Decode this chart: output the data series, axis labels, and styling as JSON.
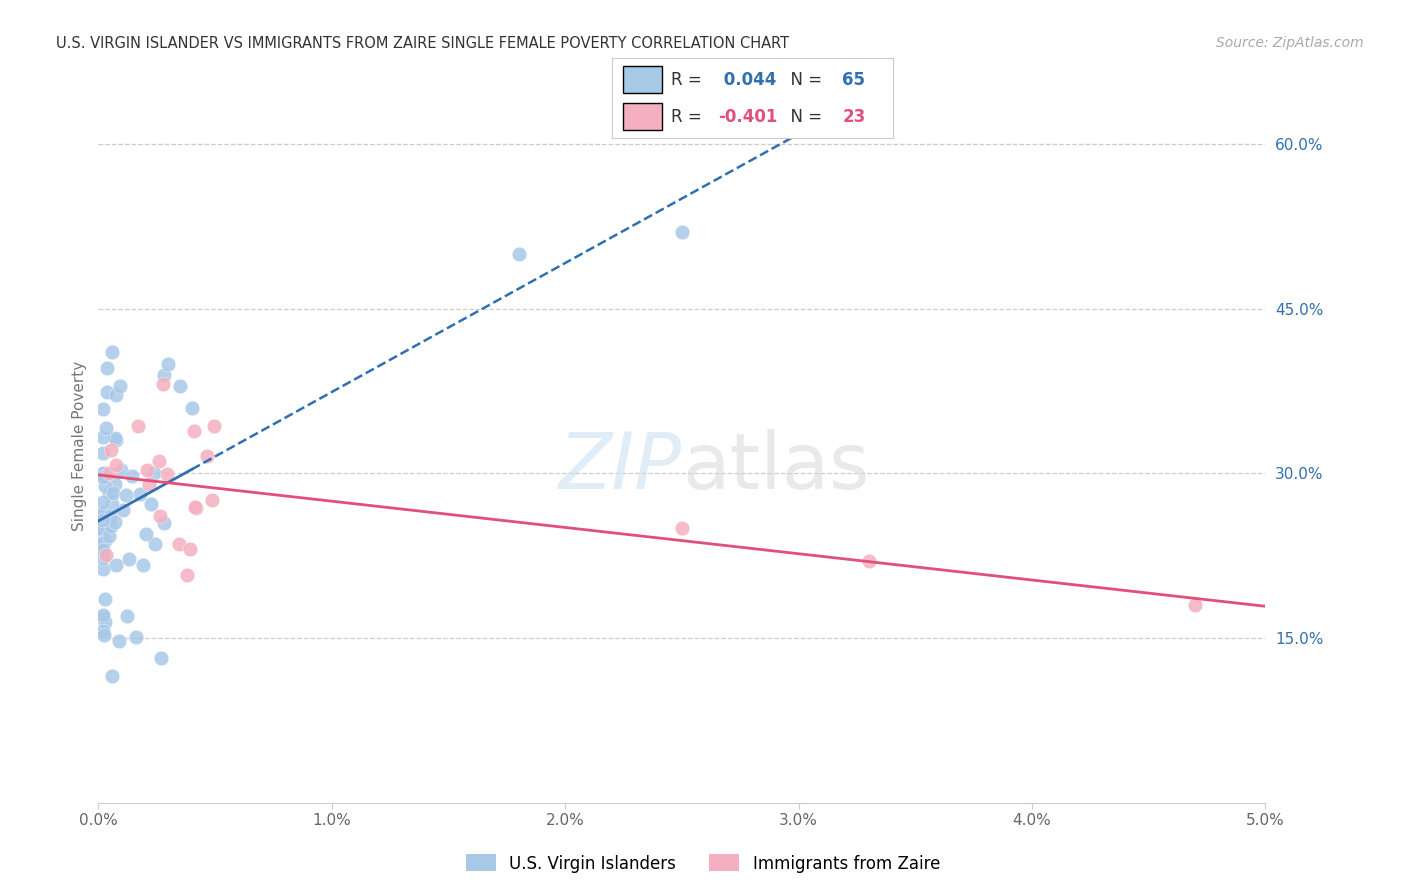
{
  "title": "U.S. VIRGIN ISLANDER VS IMMIGRANTS FROM ZAIRE SINGLE FEMALE POVERTY CORRELATION CHART",
  "source": "Source: ZipAtlas.com",
  "ylabel": "Single Female Poverty",
  "xlim": [
    0.0,
    0.05
  ],
  "ylim": [
    0.0,
    0.65
  ],
  "xticks": [
    0.0,
    0.01,
    0.02,
    0.03,
    0.04,
    0.05
  ],
  "xtick_labels": [
    "0.0%",
    "1.0%",
    "2.0%",
    "3.0%",
    "4.0%",
    "5.0%"
  ],
  "ytick_right_labels": [
    "15.0%",
    "30.0%",
    "45.0%",
    "60.0%"
  ],
  "ytick_right_values": [
    0.15,
    0.3,
    0.45,
    0.6
  ],
  "blue_R": 0.044,
  "blue_N": 65,
  "pink_R": -0.401,
  "pink_N": 23,
  "blue_color": "#a8c8e8",
  "blue_line_color": "#3070b0",
  "pink_color": "#f4b0c0",
  "pink_line_color": "#e0507a",
  "legend_label_blue": "U.S. Virgin Islanders",
  "legend_label_pink": "Immigrants from Zaire",
  "background_color": "#ffffff",
  "grid_color": "#cccccc",
  "title_color": "#333333",
  "source_color": "#aaaaaa",
  "watermark": "ZIPatlas",
  "blue_x": [
    0.0003,
    0.0003,
    0.0004,
    0.0004,
    0.0005,
    0.0005,
    0.0005,
    0.0005,
    0.0006,
    0.0006,
    0.0007,
    0.0007,
    0.0007,
    0.0008,
    0.0008,
    0.0008,
    0.0009,
    0.0009,
    0.001,
    0.001,
    0.001,
    0.001,
    0.001,
    0.001,
    0.001,
    0.0012,
    0.0012,
    0.0012,
    0.0013,
    0.0014,
    0.0015,
    0.0015,
    0.0015,
    0.0016,
    0.0017,
    0.0018,
    0.002,
    0.002,
    0.002,
    0.002,
    0.0022,
    0.0022,
    0.0025,
    0.0025,
    0.0027,
    0.003,
    0.003,
    0.003,
    0.003,
    0.003,
    0.0032,
    0.0033,
    0.0035,
    0.0035,
    0.0018,
    0.0004,
    0.0005,
    0.0006,
    0.0008,
    0.001,
    0.0012,
    0.0014,
    0.0025,
    0.002,
    0.025
  ],
  "blue_y": [
    0.265,
    0.27,
    0.255,
    0.26,
    0.265,
    0.27,
    0.26,
    0.25,
    0.27,
    0.265,
    0.24,
    0.235,
    0.23,
    0.285,
    0.28,
    0.275,
    0.285,
    0.28,
    0.275,
    0.27,
    0.265,
    0.265,
    0.235,
    0.23,
    0.22,
    0.295,
    0.29,
    0.285,
    0.295,
    0.3,
    0.3,
    0.295,
    0.285,
    0.295,
    0.29,
    0.285,
    0.295,
    0.29,
    0.285,
    0.28,
    0.215,
    0.21,
    0.28,
    0.27,
    0.26,
    0.27,
    0.265,
    0.24,
    0.235,
    0.225,
    0.2,
    0.195,
    0.245,
    0.24,
    0.355,
    0.52,
    0.5,
    0.4,
    0.39,
    0.375,
    0.35,
    0.345,
    0.375,
    0.13,
    0.11
  ],
  "pink_x": [
    0.0004,
    0.0006,
    0.0008,
    0.001,
    0.001,
    0.0012,
    0.0015,
    0.0018,
    0.002,
    0.002,
    0.0025,
    0.0025,
    0.003,
    0.003,
    0.0033,
    0.0035,
    0.004,
    0.004,
    0.0045,
    0.0045,
    0.025,
    0.033,
    0.047
  ],
  "pink_y": [
    0.27,
    0.265,
    0.275,
    0.27,
    0.265,
    0.275,
    0.27,
    0.265,
    0.32,
    0.28,
    0.255,
    0.25,
    0.245,
    0.24,
    0.235,
    0.22,
    0.23,
    0.225,
    0.225,
    0.2,
    0.25,
    0.23,
    0.18
  ]
}
